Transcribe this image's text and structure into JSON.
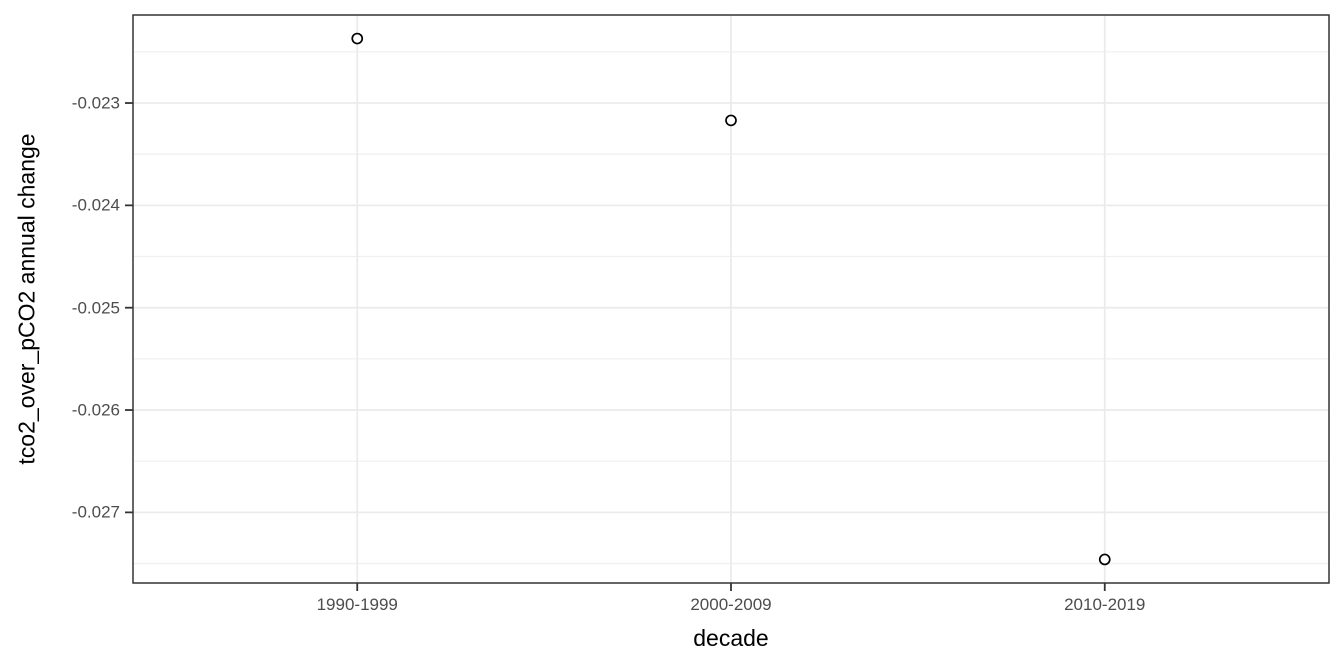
{
  "chart_data": {
    "type": "scatter",
    "title": "",
    "xlabel": "decade",
    "ylabel": "tco2_over_pCO2 annual change",
    "categories": [
      "1990-1999",
      "2000-2009",
      "2010-2019"
    ],
    "values": [
      -0.02237,
      -0.02317,
      -0.02746
    ],
    "y_ticks": [
      -0.023,
      -0.024,
      -0.025,
      -0.026,
      -0.027
    ],
    "y_tick_labels": [
      "-0.023",
      "-0.024",
      "-0.025",
      "-0.026",
      "-0.027"
    ],
    "y_minor_ticks": [
      -0.0225,
      -0.0235,
      -0.0245,
      -0.0255,
      -0.0265,
      -0.0275
    ],
    "ylim": [
      -0.02769,
      -0.02214
    ],
    "grid": "major-and-minor-horizontal, major-vertical",
    "legend": "none",
    "point_style": "open-circle"
  },
  "colors": {
    "background": "#ffffff",
    "panel_background": "#ffffff",
    "panel_border": "#333333",
    "grid_major": "#ebebeb",
    "grid_minor": "#f0f0f0",
    "tick_mark": "#333333",
    "tick_label": "#4d4d4d",
    "axis_title": "#000000",
    "point_stroke": "#000000",
    "point_fill": "#ffffff"
  }
}
